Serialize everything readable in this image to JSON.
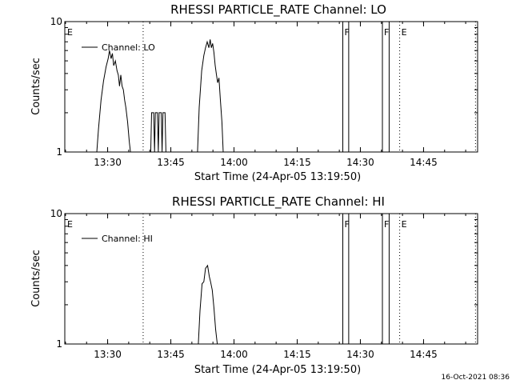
{
  "footer": {
    "timestamp": "16-Oct-2021 08:36"
  },
  "chart_data": [
    {
      "type": "line",
      "title": "RHESSI PARTICLE_RATE Channel: LO",
      "xlabel": "Start Time (24-Apr-05 13:19:50)",
      "ylabel": "Counts/sec",
      "yscale": "log",
      "ylim": [
        1,
        10
      ],
      "xlim_min": [
        0,
        98
      ],
      "x_unit": "minutes after 13:19:50",
      "grid": false,
      "legend_position": "top-left",
      "y_tick_labels": [
        "1",
        "10"
      ],
      "x_ticks": [
        {
          "label": "13:30",
          "value": 10.17
        },
        {
          "label": "13:45",
          "value": 25.17
        },
        {
          "label": "14:00",
          "value": 40.17
        },
        {
          "label": "14:15",
          "value": 55.17
        },
        {
          "label": "14:30",
          "value": 70.17
        },
        {
          "label": "14:45",
          "value": 85.17
        }
      ],
      "series": [
        {
          "name": "Channel: LO",
          "color": "#000000",
          "points": [
            [
              7.6,
              1
            ],
            [
              8.0,
              1.5
            ],
            [
              8.6,
              2.5
            ],
            [
              9.2,
              3.5
            ],
            [
              9.8,
              4.5
            ],
            [
              10.3,
              5.2
            ],
            [
              10.6,
              6.0
            ],
            [
              11.0,
              5.2
            ],
            [
              11.3,
              5.7
            ],
            [
              11.6,
              4.6
            ],
            [
              12.0,
              5.0
            ],
            [
              12.4,
              4.2
            ],
            [
              12.7,
              3.9
            ],
            [
              13.0,
              3.2
            ],
            [
              13.3,
              3.9
            ],
            [
              13.6,
              3.2
            ],
            [
              13.9,
              3.0
            ],
            [
              14.2,
              2.5
            ],
            [
              14.5,
              2.2
            ],
            [
              14.9,
              1.7
            ],
            [
              15.3,
              1.2
            ],
            [
              15.6,
              1
            ],
            [
              20.4,
              1
            ],
            [
              20.6,
              2
            ],
            [
              21.1,
              2
            ],
            [
              21.3,
              1
            ],
            [
              21.5,
              2
            ],
            [
              22.0,
              2
            ],
            [
              22.2,
              1
            ],
            [
              22.4,
              2
            ],
            [
              22.9,
              2
            ],
            [
              23.1,
              1
            ],
            [
              23.3,
              2
            ],
            [
              23.8,
              2
            ],
            [
              24.0,
              1
            ],
            [
              31.5,
              1
            ],
            [
              31.9,
              2.2
            ],
            [
              32.5,
              4.2
            ],
            [
              33.0,
              5.5
            ],
            [
              33.4,
              6.3
            ],
            [
              33.8,
              7.0
            ],
            [
              34.2,
              6.3
            ],
            [
              34.5,
              7.3
            ],
            [
              34.8,
              6.3
            ],
            [
              35.1,
              6.8
            ],
            [
              35.4,
              5.8
            ],
            [
              35.7,
              4.6
            ],
            [
              36.0,
              3.9
            ],
            [
              36.3,
              3.4
            ],
            [
              36.6,
              3.7
            ],
            [
              36.9,
              2.6
            ],
            [
              37.3,
              1.7
            ],
            [
              37.6,
              1
            ]
          ]
        }
      ],
      "annotations": [
        {
          "label": "E",
          "value": 0.2
        },
        {
          "label": "",
          "value": 18.6,
          "style": "dotted"
        },
        {
          "label": "F",
          "value": 66.0,
          "style": "solid-box-end",
          "value2": 67.4
        },
        {
          "label": "F",
          "value": 75.4,
          "style": "solid-box-end",
          "value2": 77.0
        },
        {
          "label": "E",
          "value": 79.5,
          "style": "dotted"
        },
        {
          "label": "",
          "value": 97.5,
          "style": "dotted"
        }
      ]
    },
    {
      "type": "line",
      "title": "RHESSI PARTICLE_RATE Channel: HI",
      "xlabel": "Start Time (24-Apr-05 13:19:50)",
      "ylabel": "Counts/sec",
      "yscale": "log",
      "ylim": [
        1,
        10
      ],
      "xlim_min": [
        0,
        98
      ],
      "x_unit": "minutes after 13:19:50",
      "grid": false,
      "legend_position": "top-left",
      "y_tick_labels": [
        "1",
        "10"
      ],
      "x_ticks": [
        {
          "label": "13:30",
          "value": 10.17
        },
        {
          "label": "13:45",
          "value": 25.17
        },
        {
          "label": "14:00",
          "value": 40.17
        },
        {
          "label": "14:15",
          "value": 55.17
        },
        {
          "label": "14:30",
          "value": 70.17
        },
        {
          "label": "14:45",
          "value": 85.17
        }
      ],
      "series": [
        {
          "name": "Channel: HI",
          "color": "#000000",
          "points": [
            [
              31.7,
              1
            ],
            [
              32.1,
              1.8
            ],
            [
              32.6,
              2.9
            ],
            [
              33.0,
              3.0
            ],
            [
              33.4,
              3.8
            ],
            [
              33.9,
              4.0
            ],
            [
              34.3,
              3.3
            ],
            [
              34.6,
              3.0
            ],
            [
              35.0,
              2.6
            ],
            [
              35.4,
              1.9
            ],
            [
              35.8,
              1.3
            ],
            [
              36.2,
              1
            ]
          ]
        }
      ],
      "annotations": [
        {
          "label": "E",
          "value": 0.2
        },
        {
          "label": "",
          "value": 18.6,
          "style": "dotted"
        },
        {
          "label": "F",
          "value": 66.0,
          "style": "solid-box-end",
          "value2": 67.4
        },
        {
          "label": "F",
          "value": 75.4,
          "style": "solid-box-end",
          "value2": 77.0
        },
        {
          "label": "E",
          "value": 79.5,
          "style": "dotted"
        },
        {
          "label": "",
          "value": 97.5,
          "style": "dotted"
        }
      ]
    }
  ]
}
